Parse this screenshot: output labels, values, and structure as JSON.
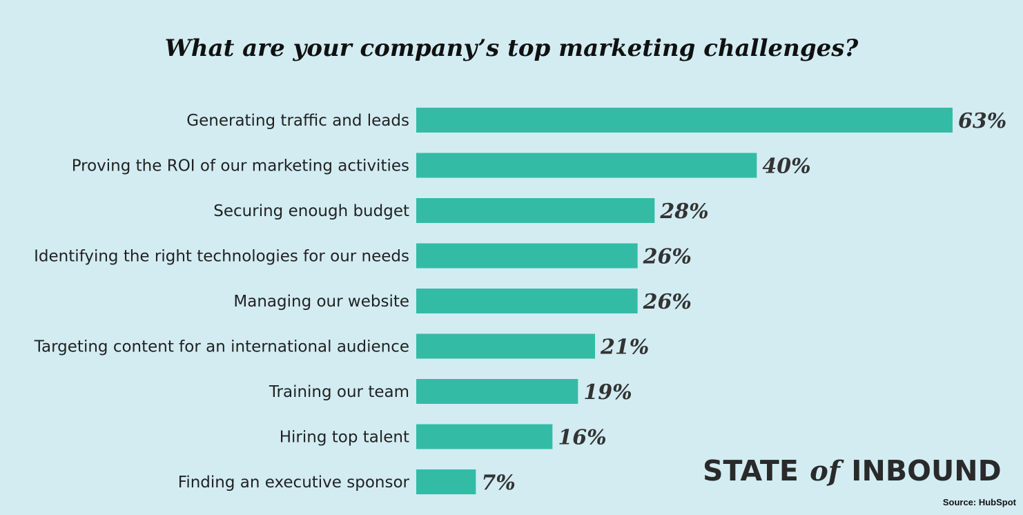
{
  "chart_data": {
    "type": "bar",
    "orientation": "horizontal",
    "title": "What are your company’s top marketing challenges?",
    "categories": [
      "Generating traffic and leads",
      "Proving the ROI of our marketing activities",
      "Securing enough budget",
      "Identifying the right technologies for our needs",
      "Managing our website",
      "Targeting content for an international audience",
      "Training our team",
      "Hiring top talent",
      "Finding an executive sponsor"
    ],
    "values": [
      63,
      40,
      28,
      26,
      26,
      21,
      19,
      16,
      7
    ],
    "value_labels": [
      "63%",
      "40%",
      "28%",
      "26%",
      "26%",
      "21%",
      "19%",
      "16%",
      "7%"
    ],
    "xlim": [
      0,
      63
    ],
    "grid": false,
    "bar_color": "#34bba5"
  },
  "branding": {
    "part1": "STATE",
    "part2": "of",
    "part3": "INBOUND"
  },
  "source": "Source: HubSpot",
  "colors": {
    "background": "#d2ecf2",
    "bar": "#34bba5"
  }
}
